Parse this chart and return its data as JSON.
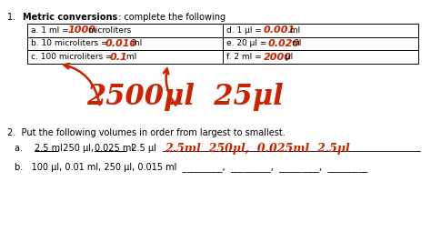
{
  "bg_color": "#ffffff",
  "red": "#cc2200",
  "section1_header": "1.   Metric conversions: complete the following",
  "section1_bold": "Metric conversions",
  "table_rows_left": [
    {
      "label": "a. 1 ml = ",
      "answer": "1000",
      "unit": "microliters"
    },
    {
      "label": "b. 10 microliters = ",
      "answer": "0.010",
      "unit": " ml"
    },
    {
      "label": "c. 100 microliters = ",
      "answer": "0.1",
      "unit": " ml"
    }
  ],
  "table_rows_right": [
    {
      "label": "d. 1 μl = ",
      "answer": "0.001",
      "unit": " ml"
    },
    {
      "label": "e. 20 μl = ",
      "answer": "0.020",
      "unit": "ml"
    },
    {
      "label": "f. 2 ml = ",
      "answer": "2000",
      "unit": " μl"
    }
  ],
  "large_text": "2500μl  25μl",
  "section2_header": "2.  Put the following volumes in order from largest to smallest.",
  "line_a_label": "a.   ",
  "line_a_parts": [
    {
      "text": "2.5 ml",
      "underline": true
    },
    {
      "text": ", 250 μl, ",
      "underline": false
    },
    {
      "text": "0.025 ml",
      "underline": true
    },
    {
      "text": ", 2.5 μl  ",
      "underline": false
    }
  ],
  "line_a_answer": "2.5ml  250μl,  0.025ml  2.5μl",
  "line_b": "b.   100 μl, 0.01 ml, 250 μl, 0.015 ml  _________,  _________,  _________,  _________"
}
